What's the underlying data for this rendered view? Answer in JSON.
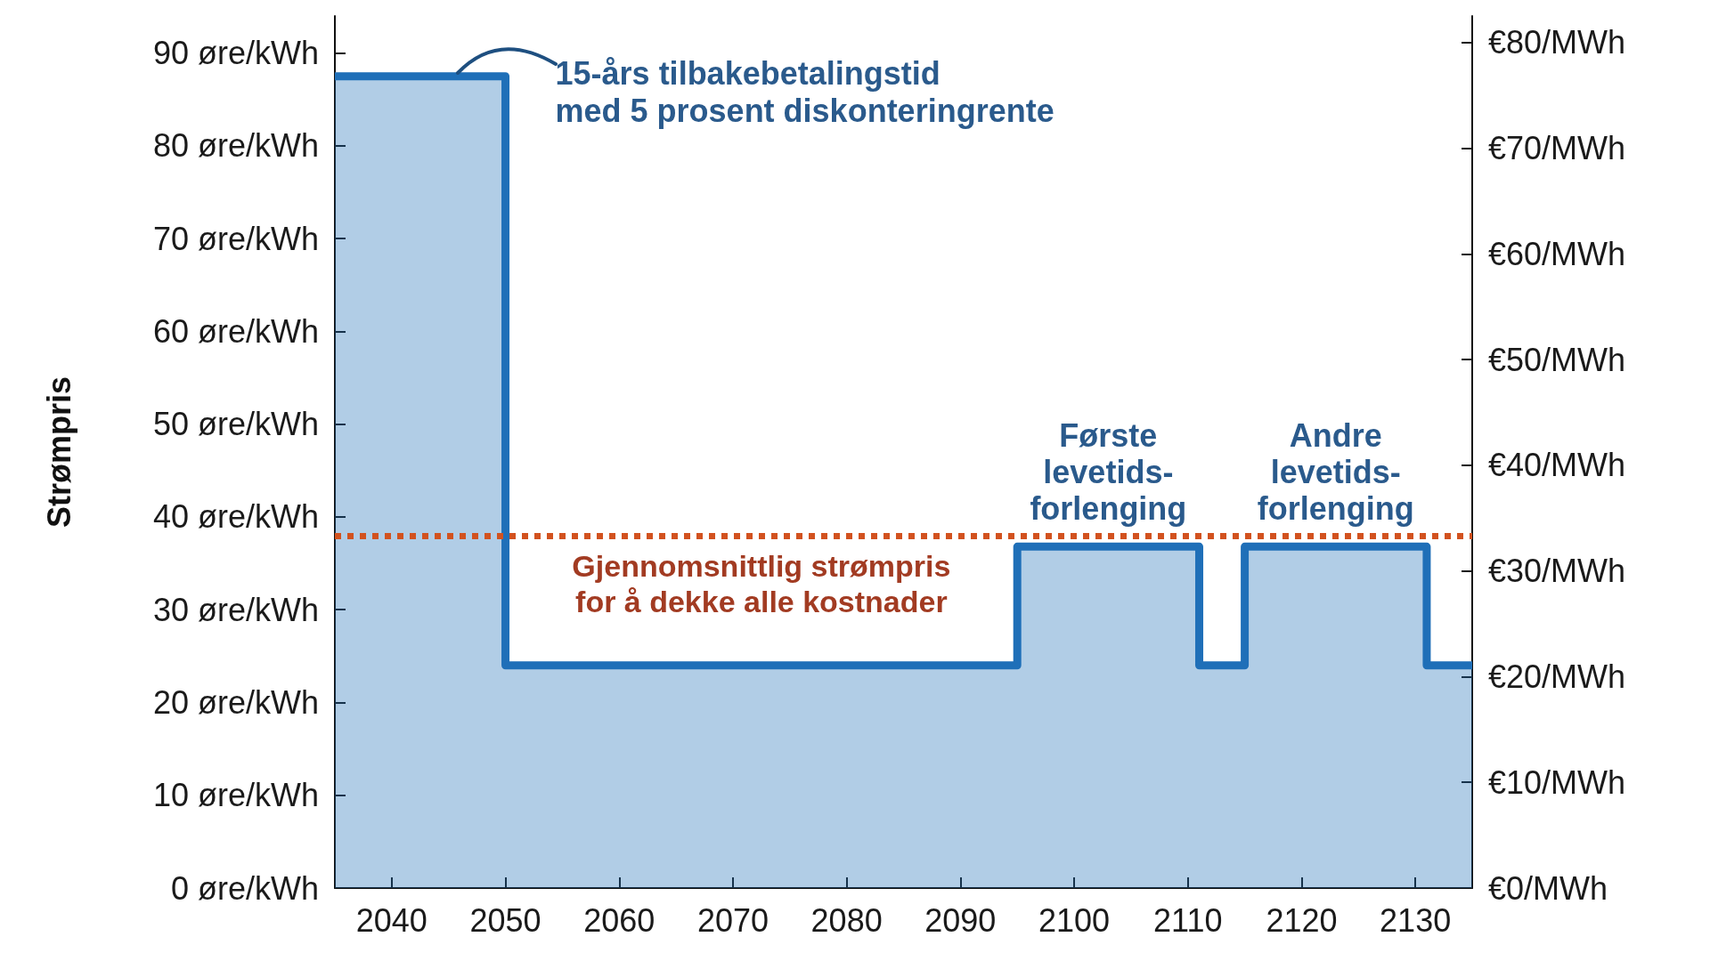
{
  "chart_data": {
    "type": "area",
    "ylabel": "Strømpris",
    "x": [
      2035,
      2050,
      2050,
      2095,
      2095,
      2111,
      2111,
      2115,
      2115,
      2131,
      2131,
      2135
    ],
    "series": [
      {
        "color": "#1f6fb8",
        "values": [
          87.5,
          87.5,
          24,
          24,
          36.8,
          36.8,
          24,
          24,
          36.8,
          36.8,
          24,
          24
        ]
      }
    ],
    "xlim": [
      2035,
      2135
    ],
    "xticks": [
      2040,
      2050,
      2060,
      2070,
      2080,
      2090,
      2100,
      2110,
      2120,
      2130
    ],
    "ylim": [
      0,
      94
    ],
    "yticks": [
      {
        "value": 0,
        "label": "0 øre/kWh"
      },
      {
        "value": 10,
        "label": "10 øre/kWh"
      },
      {
        "value": 20,
        "label": "20 øre/kWh"
      },
      {
        "value": 30,
        "label": "30 øre/kWh"
      },
      {
        "value": 40,
        "label": "40 øre/kWh"
      },
      {
        "value": 50,
        "label": "50 øre/kWh"
      },
      {
        "value": 60,
        "label": "60 øre/kWh"
      },
      {
        "value": 70,
        "label": "70 øre/kWh"
      },
      {
        "value": 80,
        "label": "80 øre/kWh"
      },
      {
        "value": 90,
        "label": "90 øre/kWh"
      }
    ],
    "y2lim": [
      0,
      82.5
    ],
    "y2ticks": [
      {
        "value": 0,
        "label": "€0/MWh"
      },
      {
        "value": 10,
        "label": "€10/MWh"
      },
      {
        "value": 20,
        "label": "€20/MWh"
      },
      {
        "value": 30,
        "label": "€30/MWh"
      },
      {
        "value": 40,
        "label": "€40/MWh"
      },
      {
        "value": 50,
        "label": "€50/MWh"
      },
      {
        "value": 60,
        "label": "€60/MWh"
      },
      {
        "value": 70,
        "label": "€70/MWh"
      },
      {
        "value": 80,
        "label": "€80/MWh"
      }
    ],
    "ref_lines": [
      {
        "axis": "y",
        "value": 38,
        "label": "Gjennomsnittlig strømpris\nfor å dekke alle kostnader",
        "color": "#d2521f",
        "line_style": "dotted"
      }
    ],
    "annotations": [
      {
        "text": "15-års tilbakebetalingstid\nmed 5 prosent diskonteringrente",
        "x": 2050,
        "y": 87.5
      },
      {
        "text": "Første\nlevetids-\nforlenging",
        "x": 2103,
        "y": 36.8
      },
      {
        "text": "Andre\nlevetids-\nforlenging",
        "x": 2123,
        "y": 36.8
      }
    ],
    "grid": false
  }
}
